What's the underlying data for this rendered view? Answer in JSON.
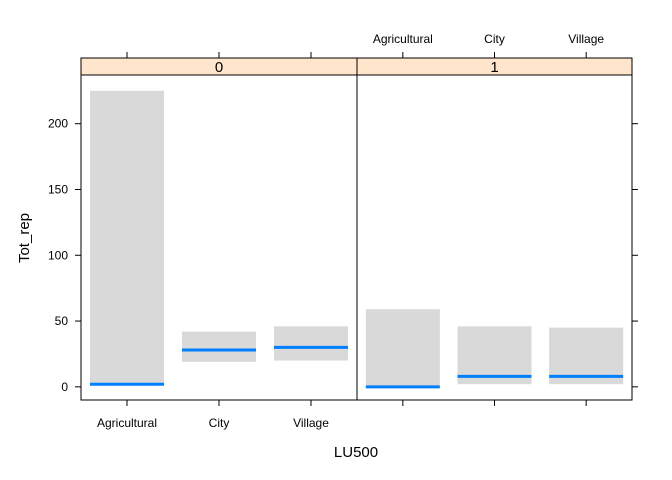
{
  "chart_data": {
    "type": "bar",
    "xlabel": "LU500",
    "ylabel": "Tot_rep",
    "ylim": [
      -10,
      237
    ],
    "yticks": [
      0,
      50,
      100,
      150,
      200
    ],
    "categories": [
      "Agricultural",
      "City",
      "Village"
    ],
    "panels": [
      {
        "strip": "0",
        "bands": [
          {
            "category": "Agricultural",
            "low": 2,
            "high": 225,
            "fit": 2
          },
          {
            "category": "City",
            "low": 19,
            "high": 42,
            "fit": 28
          },
          {
            "category": "Village",
            "low": 20,
            "high": 46,
            "fit": 30
          }
        ]
      },
      {
        "strip": "1",
        "bands": [
          {
            "category": "Agricultural",
            "low": 0,
            "high": 59,
            "fit": 0
          },
          {
            "category": "City",
            "low": 2,
            "high": 46,
            "fit": 8
          },
          {
            "category": "Village",
            "low": 2,
            "high": 45,
            "fit": 8
          }
        ]
      }
    ],
    "colors": {
      "band": "#d9d9d9",
      "fit": "#0080ff",
      "strip": "#ffe5cc"
    }
  }
}
